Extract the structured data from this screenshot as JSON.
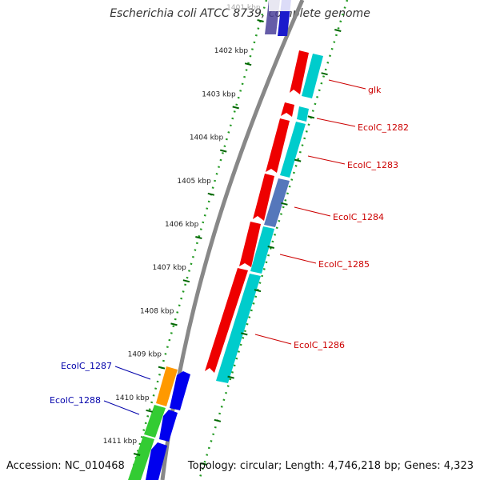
{
  "title": "Escherichia coli ATCC 8739, complete genome",
  "footer": {
    "accession": "Accession: NC_010468",
    "topology": "Topology: circular; Length: 4,746,218 bp; Genes: 4,323"
  },
  "ticks": [
    "1401 kbp",
    "1402 kbp",
    "1403 kbp",
    "1404 kbp",
    "1405 kbp",
    "1406 kbp",
    "1407 kbp",
    "1408 kbp",
    "1409 kbp",
    "1410 kbp",
    "1411 kbp"
  ],
  "gene_labels": [
    "glk",
    "EcolC_1282",
    "EcolC_1283",
    "EcolC_1284",
    "EcolC_1285",
    "EcolC_1286",
    "EcolC_1287",
    "EcolC_1288"
  ],
  "colors": {
    "forward_gene": "#ee0000",
    "cds": "#00cccc",
    "reverse_gene": "#0000ee",
    "orange": "#ff9900",
    "green": "#33cc33",
    "tick": "#006600",
    "backbone": "#888888",
    "label_red": "#cc0000",
    "label_blue": "#0000aa"
  }
}
